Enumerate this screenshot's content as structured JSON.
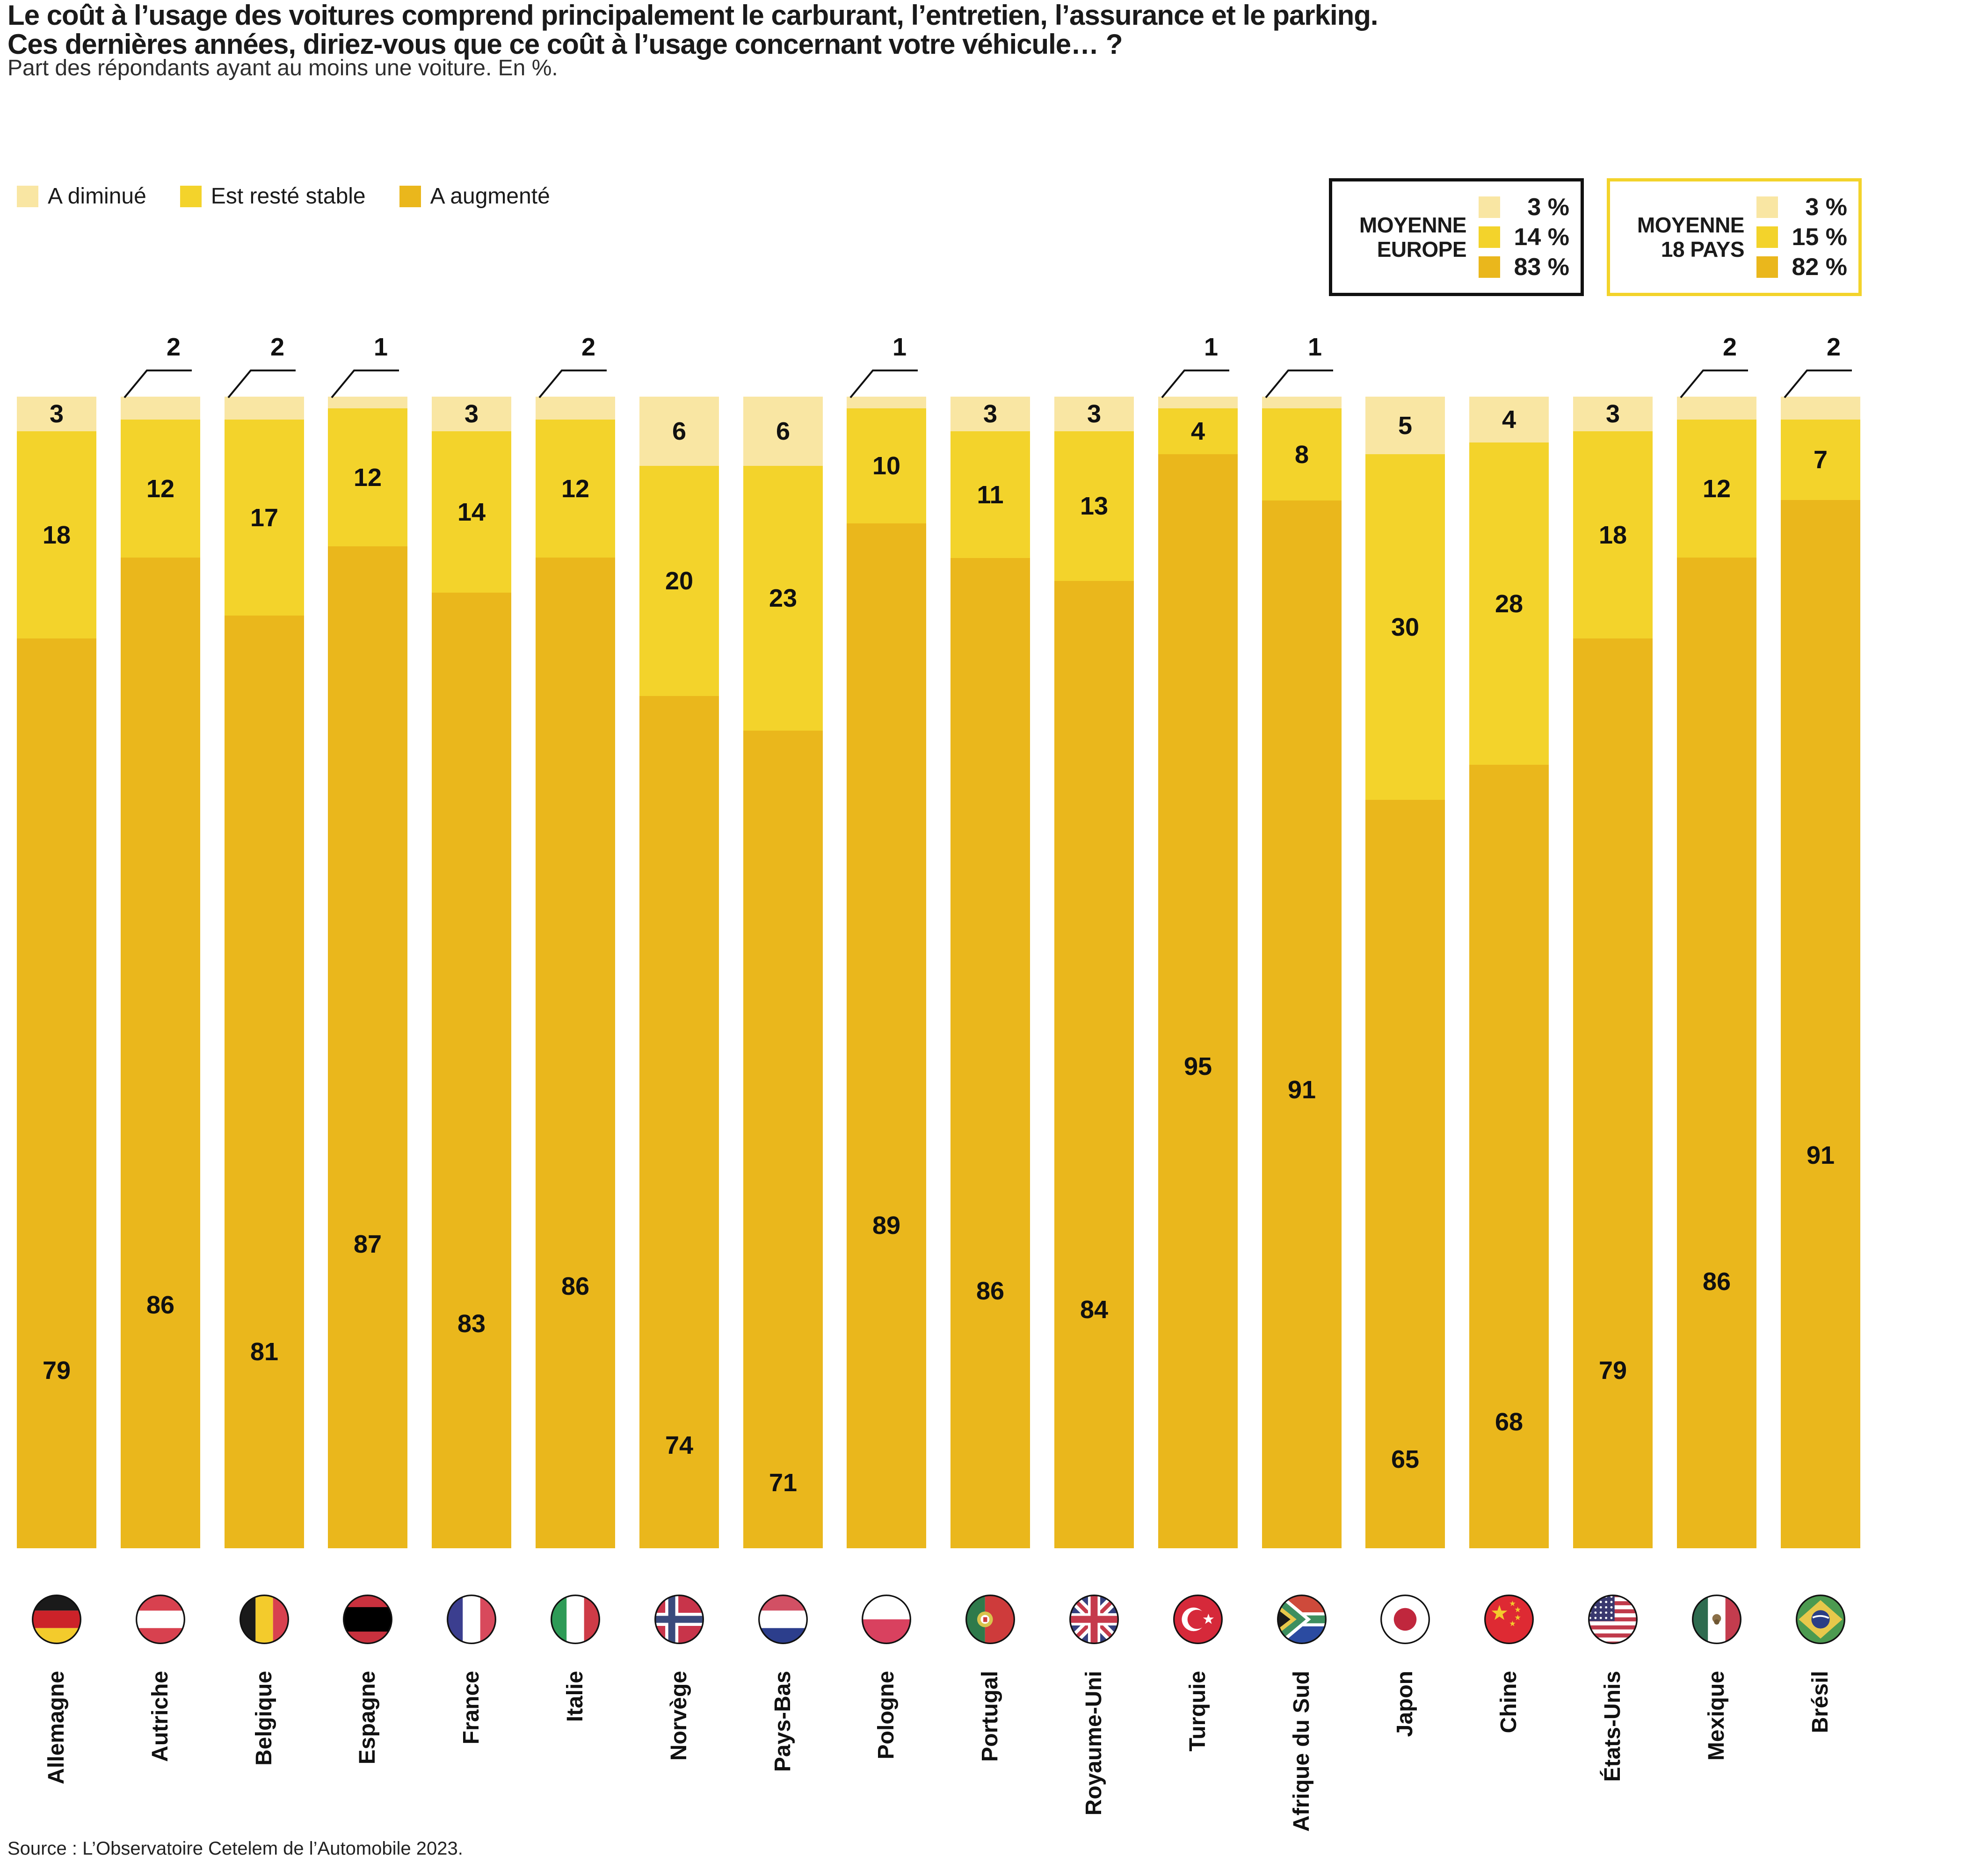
{
  "title_line1": "Le coût à l’usage des voitures comprend principalement le carburant, l’entretien, l’assurance et le parking.",
  "title_line2": "Ces dernières années, diriez-vous que ce coût à l’usage concernant votre véhicule… ?",
  "subtitle": "Part des répondants ayant au moins une voiture. En %.",
  "legend": {
    "items": [
      {
        "label": "A diminué",
        "color": "#F9E6A3"
      },
      {
        "label": "Est resté stable",
        "color": "#F3D32B"
      },
      {
        "label": "A augmenté",
        "color": "#EAB71C"
      }
    ]
  },
  "summary_boxes": [
    {
      "title_line1": "MOYENNE",
      "title_line2": "EUROPE",
      "border": "#111111",
      "values": [
        {
          "color": "#F9E6A3",
          "value": "3 %"
        },
        {
          "color": "#F3D32B",
          "value": "14 %"
        },
        {
          "color": "#EAB71C",
          "value": "83 %"
        }
      ]
    },
    {
      "title_line1": "MOYENNE",
      "title_line2": "18 PAYS",
      "border": "#F3D32B",
      "values": [
        {
          "color": "#F9E6A3",
          "value": "3 %"
        },
        {
          "color": "#F3D32B",
          "value": "15 %"
        },
        {
          "color": "#EAB71C",
          "value": "82 %"
        }
      ]
    }
  ],
  "chart_data": {
    "type": "bar",
    "stacked": true,
    "unit": "%",
    "ylim": [
      0,
      100
    ],
    "series": [
      "A diminué",
      "Est resté stable",
      "A augmenté"
    ],
    "colors": [
      "#F9E6A3",
      "#F3D32B",
      "#EAB71C"
    ],
    "countries": [
      {
        "name": "Allemagne",
        "flag": "de",
        "values": [
          3,
          18,
          79
        ],
        "aug_label_y": 2930
      },
      {
        "name": "Autriche",
        "flag": "at",
        "values": [
          2,
          12,
          86
        ],
        "aug_label_y": 2790
      },
      {
        "name": "Belgique",
        "flag": "be",
        "values": [
          2,
          17,
          81
        ],
        "aug_label_y": 2890
      },
      {
        "name": "Espagne",
        "flag": "es",
        "values": [
          1,
          12,
          87
        ],
        "aug_label_y": 2660
      },
      {
        "name": "France",
        "flag": "fr",
        "values": [
          3,
          14,
          83
        ],
        "aug_label_y": 2830
      },
      {
        "name": "Italie",
        "flag": "it",
        "values": [
          2,
          12,
          86
        ],
        "aug_label_y": 2750
      },
      {
        "name": "Norvège",
        "flag": "no",
        "values": [
          6,
          20,
          74
        ],
        "aug_label_y": 3090
      },
      {
        "name": "Pays-Bas",
        "flag": "nl",
        "values": [
          6,
          23,
          71
        ],
        "aug_label_y": 3170
      },
      {
        "name": "Pologne",
        "flag": "pl",
        "values": [
          1,
          10,
          89
        ],
        "aug_label_y": 2620
      },
      {
        "name": "Portugal",
        "flag": "pt",
        "values": [
          3,
          11,
          86
        ],
        "aug_label_y": 2760
      },
      {
        "name": "Royaume-Uni",
        "flag": "gb",
        "values": [
          3,
          13,
          84
        ],
        "aug_label_y": 2800
      },
      {
        "name": "Turquie",
        "flag": "tr",
        "values": [
          1,
          4,
          95
        ],
        "aug_label_y": 2280
      },
      {
        "name": "Afrique du Sud",
        "flag": "za",
        "values": [
          1,
          8,
          91
        ],
        "aug_label_y": 2330
      },
      {
        "name": "Japon",
        "flag": "jp",
        "values": [
          5,
          30,
          65
        ],
        "aug_label_y": 3120
      },
      {
        "name": "Chine",
        "flag": "cn",
        "values": [
          4,
          28,
          68
        ],
        "aug_label_y": 3040
      },
      {
        "name": "États-Unis",
        "flag": "us",
        "values": [
          3,
          18,
          79
        ],
        "aug_label_y": 2930
      },
      {
        "name": "Mexique",
        "flag": "mx",
        "values": [
          2,
          12,
          86
        ],
        "aug_label_y": 2740
      },
      {
        "name": "Brésil",
        "flag": "br",
        "values": [
          2,
          7,
          91
        ],
        "aug_label_y": 2470
      }
    ]
  },
  "source": "Source : L’Observatoire Cetelem de l’Automobile 2023."
}
